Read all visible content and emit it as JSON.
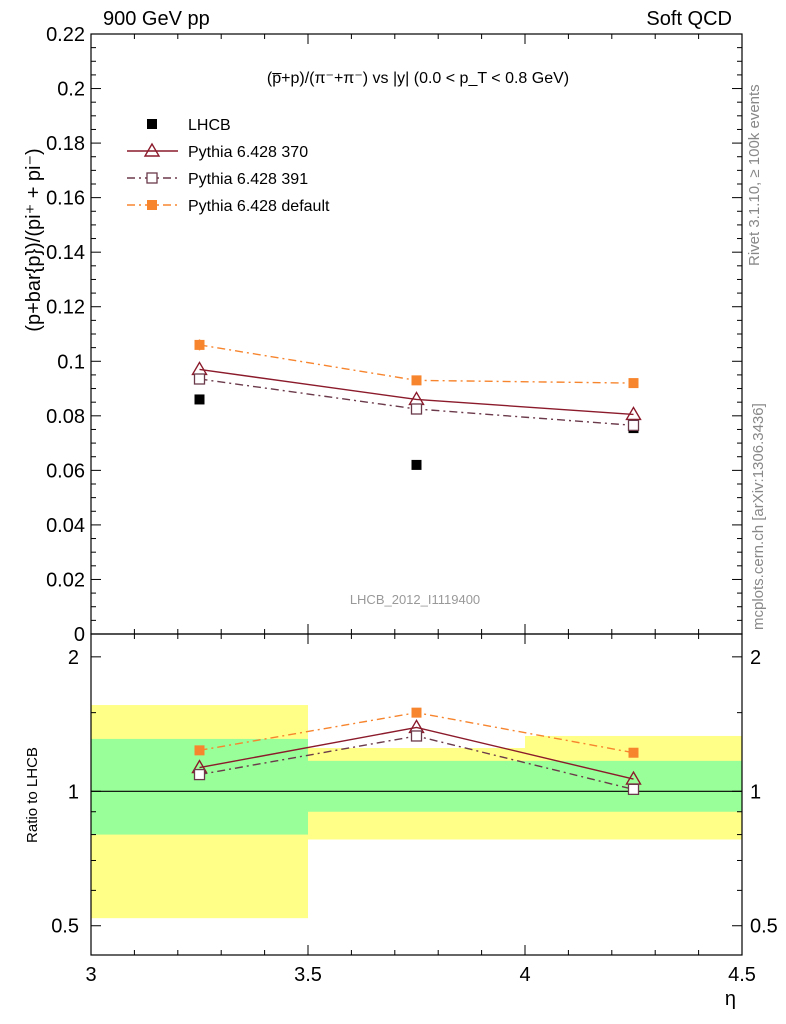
{
  "header": {
    "left": "900 GeV pp",
    "right": "Soft QCD"
  },
  "side_labels": {
    "rivet": "Rivet 3.1.10, ≥ 100k events",
    "mcplots": "mcplots.cern.ch [arXiv:1306.3436]"
  },
  "chart_data": [
    {
      "type": "scatter",
      "panel": "main",
      "title": "(p̅+p)/(π⁻+π⁻) vs |y| (0.0 < p_T < 0.8 GeV)",
      "ylabel": "(p+bar{p})/(pi⁺ + pi⁻)",
      "xlabel": "",
      "watermark": "LHCB_2012_I1119400",
      "xlim": [
        3,
        4.5
      ],
      "ylim": [
        0,
        0.22
      ],
      "yticks": [
        "0",
        "0.02",
        "0.04",
        "0.06",
        "0.08",
        "0.1",
        "0.12",
        "0.14",
        "0.16",
        "0.18",
        "0.2",
        "0.22"
      ],
      "legend_position": "top-left",
      "series": [
        {
          "name": "LHCB",
          "color": "#000000",
          "marker": "filled-square",
          "line": "none",
          "x": [
            3.25,
            3.75,
            4.25
          ],
          "y": [
            0.086,
            0.062,
            0.0755
          ]
        },
        {
          "name": "Pythia 6.428 370",
          "color": "#8b1a2b",
          "marker": "open-triangle",
          "line": "solid",
          "x": [
            3.25,
            3.75,
            4.25
          ],
          "y": [
            0.097,
            0.086,
            0.0805
          ]
        },
        {
          "name": "Pythia 6.428 391",
          "color": "#6b3a4a",
          "marker": "open-square",
          "line": "dash-dot",
          "x": [
            3.25,
            3.75,
            4.25
          ],
          "y": [
            0.0935,
            0.0825,
            0.0765
          ]
        },
        {
          "name": "Pythia 6.428 default",
          "color": "#f7852e",
          "marker": "filled-square",
          "line": "dash-dot",
          "x": [
            3.25,
            3.75,
            4.25
          ],
          "y": [
            0.106,
            0.093,
            0.092
          ]
        }
      ]
    },
    {
      "type": "line",
      "panel": "ratio",
      "ylabel": "Ratio to LHCB",
      "xlabel": "η",
      "xlim": [
        3,
        4.5
      ],
      "ylim": [
        0.43,
        2.25
      ],
      "log_y": true,
      "xticks": [
        "3",
        "3.5",
        "4",
        "4.5"
      ],
      "yticks": [
        "0.5",
        "1",
        "2"
      ],
      "bands": [
        {
          "x": [
            3.0,
            3.5
          ],
          "stat": [
            0.8,
            1.31
          ],
          "total": [
            0.52,
            1.56
          ]
        },
        {
          "x": [
            3.5,
            4.0
          ],
          "stat": [
            0.9,
            1.17
          ],
          "total": [
            0.78,
            1.25
          ]
        },
        {
          "x": [
            4.0,
            4.5
          ],
          "stat": [
            0.9,
            1.17
          ],
          "total": [
            0.78,
            1.33
          ]
        }
      ],
      "band_colors": {
        "stat": "#99ff99",
        "total": "#ffff88"
      },
      "series": [
        {
          "name": "Pythia 6.428 370",
          "x": [
            3.25,
            3.75,
            4.25
          ],
          "y": [
            1.13,
            1.39,
            1.065
          ]
        },
        {
          "name": "Pythia 6.428 391",
          "x": [
            3.25,
            3.75,
            4.25
          ],
          "y": [
            1.09,
            1.33,
            1.01
          ]
        },
        {
          "name": "Pythia 6.428 default",
          "x": [
            3.25,
            3.75,
            4.25
          ],
          "y": [
            1.235,
            1.5,
            1.22
          ]
        }
      ]
    }
  ]
}
